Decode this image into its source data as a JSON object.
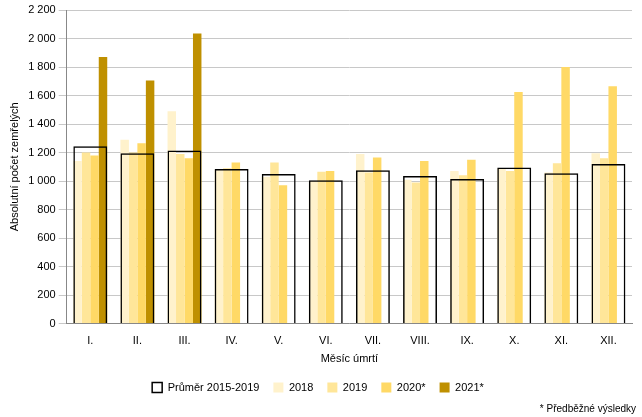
{
  "chart_data": {
    "type": "bar",
    "x_label": "Měsíc úmrtí",
    "y_label": "Absolutní počet zemřelých",
    "annotations": [
      "* Předběžné výsledky"
    ],
    "categories": [
      "I.",
      "II.",
      "III.",
      "IV.",
      "V.",
      "VI.",
      "VII.",
      "VIII.",
      "IX.",
      "X.",
      "XI.",
      "XII."
    ],
    "series": [
      {
        "name": "2018",
        "color": "#fff2cc",
        "values": [
          1140,
          1290,
          1490,
          1080,
          1030,
          1000,
          1190,
          1010,
          1070,
          1090,
          1060,
          1195
        ]
      },
      {
        "name": "2019",
        "color": "#ffe699",
        "values": [
          1200,
          1200,
          1190,
          1090,
          1130,
          1065,
          1060,
          990,
          1040,
          1070,
          1125,
          1160
        ]
      },
      {
        "name": "2020*",
        "color": "#ffd966",
        "values": [
          1180,
          1265,
          1160,
          1130,
          970,
          1070,
          1165,
          1140,
          1150,
          1625,
          1800,
          1665
        ]
      },
      {
        "name": "2021*",
        "color": "#bf9000",
        "values": [
          1870,
          1705,
          2035,
          null,
          null,
          null,
          null,
          null,
          null,
          null,
          null,
          null
        ]
      },
      {
        "name": "Průměr 2015-2019",
        "color": "#000000",
        "type": "outline",
        "values": [
          1245,
          1195,
          1215,
          1085,
          1050,
          1005,
          1075,
          1035,
          1015,
          1095,
          1055,
          1120
        ]
      }
    ],
    "ylim": [
      0,
      2200
    ],
    "yticks": [
      0,
      200,
      400,
      600,
      800,
      {
        "value": 1000,
        "label": "1 000"
      },
      {
        "value": 1200,
        "label": "1 200"
      },
      {
        "value": 1400,
        "label": "1 400"
      },
      {
        "value": 1600,
        "label": "1 600"
      },
      {
        "value": 1800,
        "label": "1 800"
      },
      {
        "value": 2000,
        "label": "2 000"
      },
      {
        "value": 2200,
        "label": "2 200"
      }
    ],
    "grid": true,
    "legend": "bottom"
  }
}
